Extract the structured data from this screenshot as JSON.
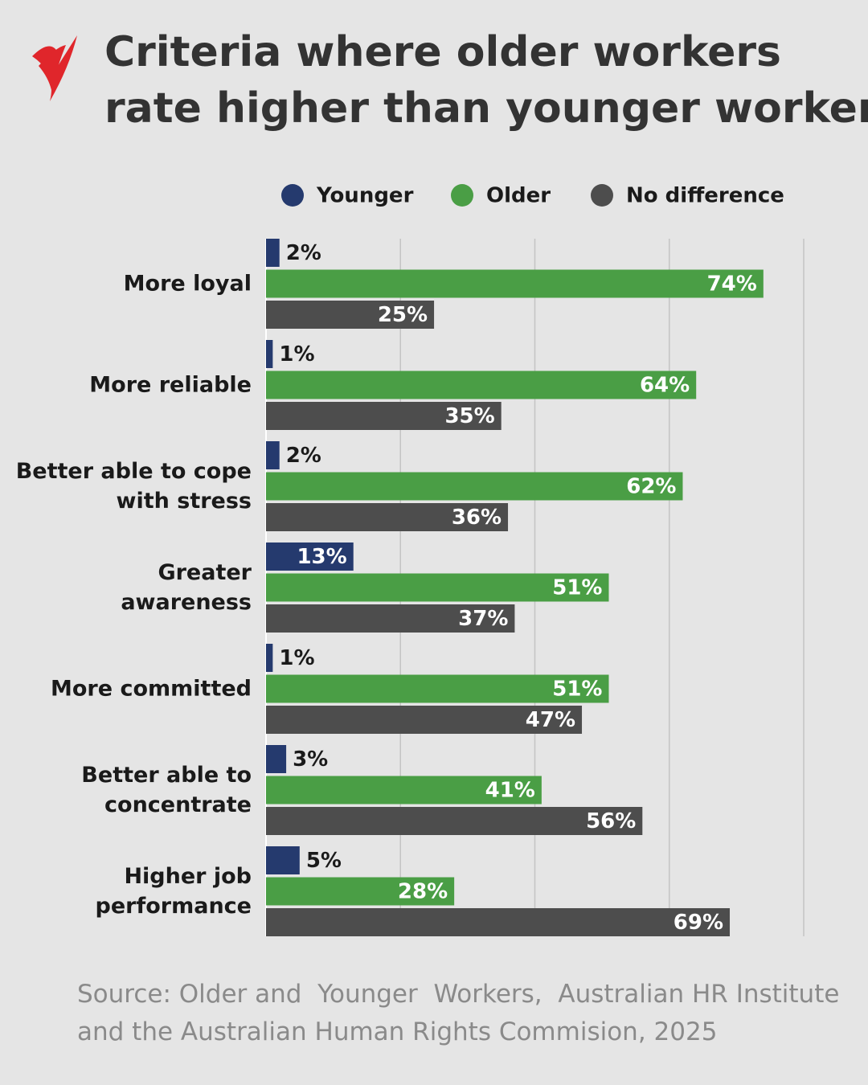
{
  "chart_data": {
    "type": "bar",
    "orientation": "horizontal",
    "title": "Criteria where older workers\nrate higher than younger workers",
    "source": "Source: Older and  Younger  Workers,  Australian HR Institute\nand the Australian Human Rights Commision, 2025",
    "categories": [
      "More loyal",
      "More reliable",
      "Better able to cope\nwith stress",
      "Greater\nawareness",
      "More committed",
      "Better able to\nconcentrate",
      "Higher job\nperformance"
    ],
    "series": [
      {
        "name": "Younger",
        "color": "#253a6e",
        "values": [
          2,
          1,
          2,
          13,
          1,
          3,
          5
        ],
        "value_labels": [
          "2%",
          "1%",
          "2%",
          "13%",
          "1%",
          "3%",
          "5%"
        ]
      },
      {
        "name": "Older",
        "color": "#4a9e45",
        "values": [
          74,
          64,
          62,
          51,
          51,
          41,
          28
        ],
        "value_labels": [
          "74%",
          "64%",
          "62%",
          "51%",
          "51%",
          "41%",
          "28%"
        ]
      },
      {
        "name": "No difference",
        "color": "#4d4d4d",
        "values": [
          25,
          35,
          36,
          37,
          47,
          56,
          69
        ],
        "value_labels": [
          "25%",
          "35%",
          "36%",
          "37%",
          "47%",
          "56%",
          "69%"
        ]
      }
    ],
    "xlim": [
      0,
      80
    ],
    "xticks": [
      0,
      20,
      40,
      60,
      80
    ],
    "grid": true,
    "legend": "top"
  }
}
